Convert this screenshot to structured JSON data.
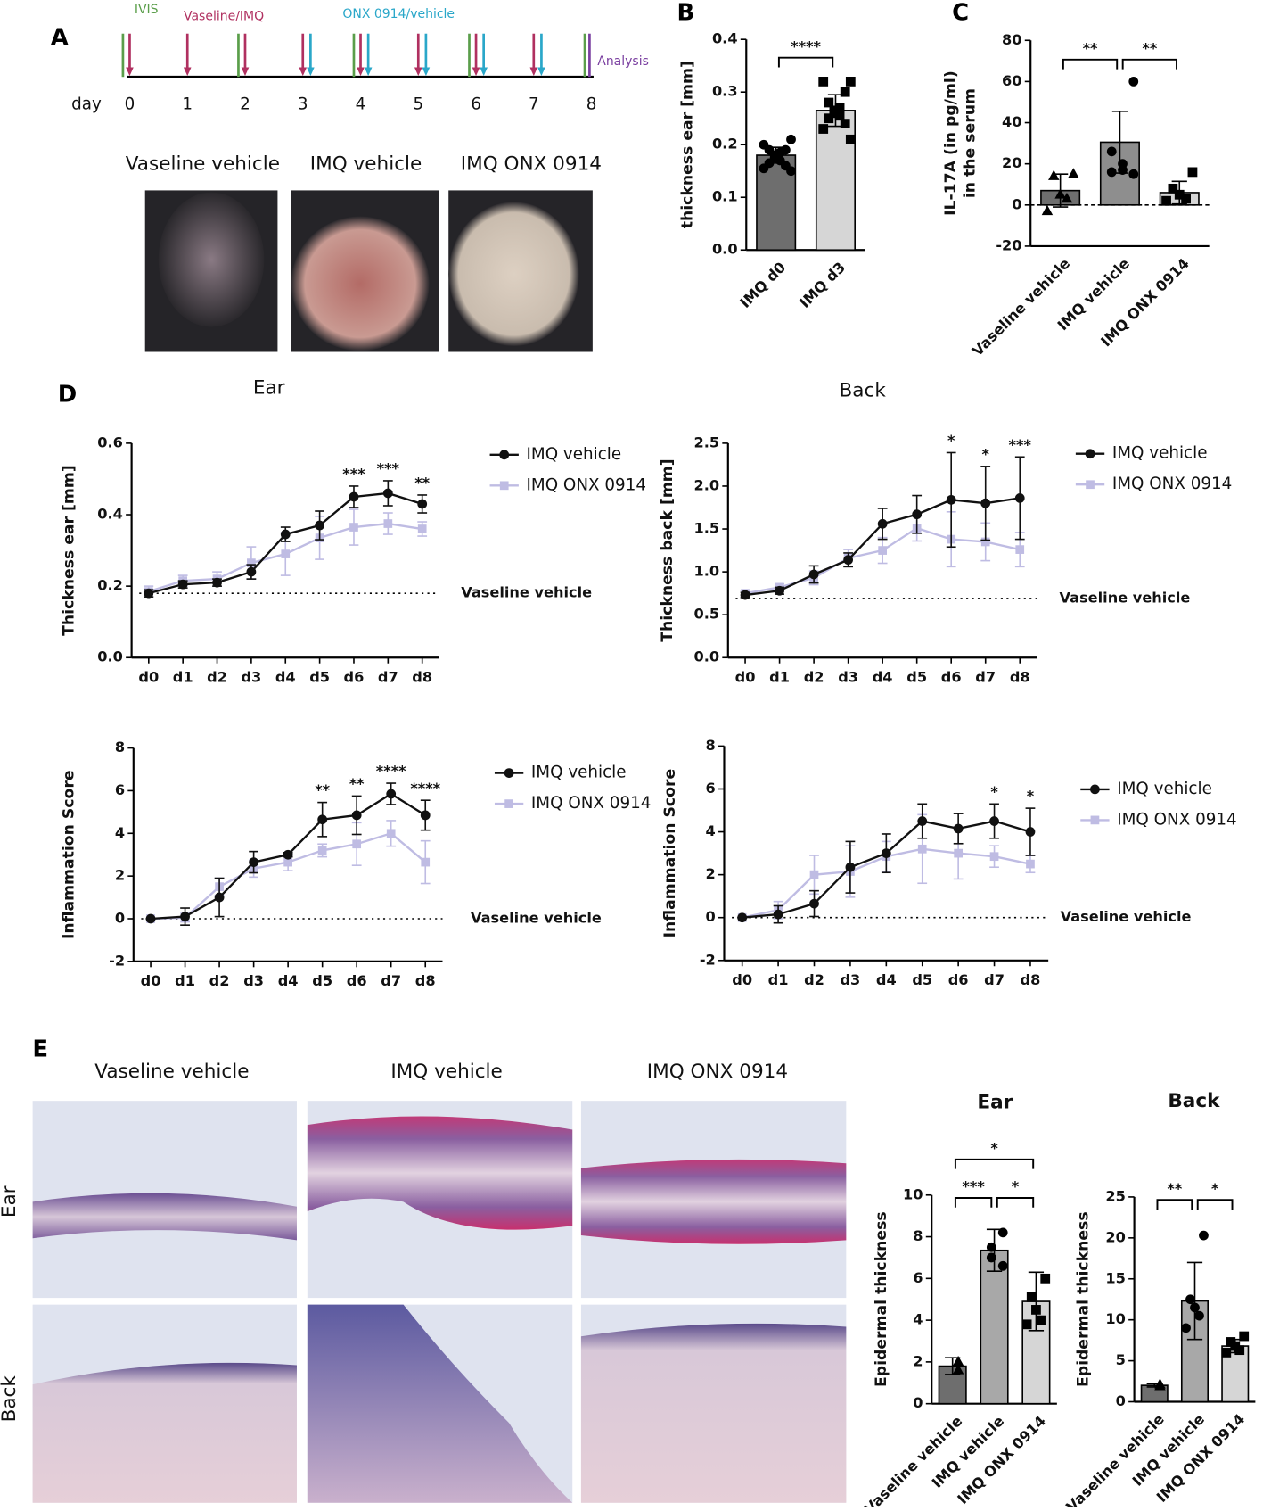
{
  "panel_labels": [
    "A",
    "B",
    "C",
    "D",
    "E"
  ],
  "timeline": {
    "events": [
      "IVIS",
      "Vaseline/IMQ",
      "ONX 0914/vehicle",
      "Analysis"
    ],
    "day_label": "day",
    "days": [
      0,
      1,
      2,
      3,
      4,
      5,
      6,
      7,
      8
    ],
    "photo_labels": [
      "Vaseline vehicle",
      "IMQ vehicle",
      "IMQ ONX 0914"
    ]
  },
  "histology": {
    "column_labels": [
      "Vaseline vehicle",
      "IMQ vehicle",
      "IMQ ONX 0914"
    ],
    "row_labels": [
      "Ear",
      "Back"
    ]
  },
  "chart_data": [
    {
      "type": "bar",
      "ylabel": "thickness ear [mm]",
      "categories": [
        "IMQ d0",
        "IMQ d3"
      ],
      "values": [
        0.18,
        0.265
      ],
      "errors": [
        0.015,
        0.03
      ],
      "points": [
        [
          0.21,
          0.2,
          0.19,
          0.19,
          0.185,
          0.18,
          0.175,
          0.17,
          0.165,
          0.16,
          0.155,
          0.15
        ],
        [
          0.32,
          0.32,
          0.3,
          0.28,
          0.27,
          0.265,
          0.26,
          0.255,
          0.25,
          0.24,
          0.23,
          0.21
        ]
      ],
      "markers": [
        "circle",
        "square"
      ],
      "colors": [
        "#6e6e6e",
        "#d6d6d6"
      ],
      "ylim": [
        0,
        0.4
      ],
      "yticks": [
        {
          "value": 0,
          "label": "0.0"
        },
        0.1,
        0.2,
        0.3,
        0.4
      ],
      "significance": [
        {
          "from": "IMQ d0",
          "to": "IMQ d3",
          "label": "****"
        }
      ]
    },
    {
      "type": "bar",
      "ylabel": [
        "IL-17A (in pg/ml)",
        "in the serum"
      ],
      "categories": [
        "Vaseline vehicle",
        "IMQ vehicle",
        "IMQ ONX 0914"
      ],
      "values": [
        7,
        30.5,
        6
      ],
      "errors": [
        8,
        15,
        5.5
      ],
      "points": [
        [
          15,
          14,
          5,
          3,
          -3
        ],
        [
          60,
          26,
          20,
          17,
          16,
          15
        ],
        [
          16,
          8,
          5,
          3,
          2
        ]
      ],
      "markers": [
        "triangle",
        "circle",
        "square"
      ],
      "colors": [
        "#6e6e6e",
        "#8e8e8e",
        "#d6d6d6"
      ],
      "ylim": [
        -20,
        80
      ],
      "yticks": [
        -20,
        0,
        20,
        40,
        60,
        80
      ],
      "zero_line": true,
      "significance": [
        {
          "from": "Vaseline vehicle",
          "to": "IMQ vehicle",
          "label": "**"
        },
        {
          "from": "IMQ vehicle",
          "to": "IMQ ONX 0914",
          "label": "**"
        }
      ]
    },
    {
      "type": "line",
      "title": "Ear",
      "ylabel": "Thickness ear [mm]",
      "categories": [
        "d0",
        "d1",
        "d2",
        "d3",
        "d4",
        "d5",
        "d6",
        "d7",
        "d8"
      ],
      "series": [
        {
          "name": "IMQ vehicle",
          "color": "#111111",
          "marker": "circle",
          "values": [
            0.18,
            0.205,
            0.21,
            0.24,
            0.345,
            0.37,
            0.45,
            0.46,
            0.43
          ],
          "errors": [
            0.01,
            0.01,
            0.01,
            0.02,
            0.02,
            0.04,
            0.03,
            0.035,
            0.025
          ]
        },
        {
          "name": "IMQ ONX 0914",
          "color": "#bfbce3",
          "marker": "square",
          "values": [
            0.185,
            0.215,
            0.22,
            0.265,
            0.29,
            0.335,
            0.365,
            0.375,
            0.36
          ],
          "errors": [
            0.015,
            0.015,
            0.02,
            0.045,
            0.06,
            0.06,
            0.05,
            0.03,
            0.02
          ]
        }
      ],
      "significance": [
        null,
        null,
        null,
        null,
        null,
        null,
        "***",
        "***",
        "**"
      ],
      "reference": {
        "label": "Vaseline vehicle",
        "value": 0.18
      },
      "ylim": [
        0,
        0.6
      ],
      "yticks": [
        {
          "value": 0,
          "label": "0.0"
        },
        0.2,
        0.4,
        0.6
      ]
    },
    {
      "type": "line",
      "title": "Back",
      "ylabel": "Thickness back [mm]",
      "categories": [
        "d0",
        "d1",
        "d2",
        "d3",
        "d4",
        "d5",
        "d6",
        "d7",
        "d8"
      ],
      "series": [
        {
          "name": "IMQ vehicle",
          "color": "#111111",
          "marker": "circle",
          "values": [
            0.73,
            0.78,
            0.97,
            1.14,
            1.56,
            1.67,
            1.84,
            1.8,
            1.86
          ],
          "errors": [
            0.03,
            0.04,
            0.1,
            0.08,
            0.18,
            0.22,
            0.55,
            0.43,
            0.48
          ]
        },
        {
          "name": "IMQ ONX 0914",
          "color": "#bfbce3",
          "marker": "square",
          "values": [
            0.75,
            0.82,
            0.93,
            1.16,
            1.25,
            1.51,
            1.38,
            1.35,
            1.26
          ],
          "errors": [
            0.03,
            0.04,
            0.08,
            0.1,
            0.15,
            0.15,
            0.32,
            0.22,
            0.2
          ]
        }
      ],
      "significance": [
        null,
        null,
        null,
        null,
        null,
        null,
        "*",
        "*",
        "***"
      ],
      "reference": {
        "label": "Vaseline vehicle",
        "value": 0.69
      },
      "ylim": [
        0,
        2.5
      ],
      "yticks": [
        {
          "value": 0,
          "label": "0.0"
        },
        0.5,
        {
          "value": 1,
          "label": "1.0"
        },
        1.5,
        {
          "value": 2,
          "label": "2.0"
        },
        2.5
      ]
    },
    {
      "type": "line",
      "ylabel": "Inflammation Score",
      "categories": [
        "d0",
        "d1",
        "d2",
        "d3",
        "d4",
        "d5",
        "d6",
        "d7",
        "d8"
      ],
      "series": [
        {
          "name": "IMQ vehicle",
          "color": "#111111",
          "marker": "circle",
          "values": [
            0,
            0.1,
            1.0,
            2.65,
            3.0,
            4.65,
            4.85,
            5.85,
            4.85
          ],
          "errors": [
            0,
            0.4,
            0.9,
            0.5,
            0.1,
            0.8,
            0.9,
            0.5,
            0.7
          ]
        },
        {
          "name": "IMQ ONX 0914",
          "color": "#bfbce3",
          "marker": "square",
          "values": [
            0,
            0.05,
            1.5,
            2.35,
            2.65,
            3.2,
            3.5,
            4.0,
            2.65
          ],
          "errors": [
            0,
            0.2,
            0.4,
            0.4,
            0.4,
            0.3,
            1.0,
            0.6,
            1.0
          ]
        }
      ],
      "significance": [
        null,
        null,
        null,
        null,
        null,
        "**",
        "**",
        "****",
        "****"
      ],
      "reference": {
        "label": "Vaseline vehicle",
        "value": 0
      },
      "ylim": [
        -2,
        8
      ],
      "yticks": [
        -2,
        0,
        2,
        4,
        6,
        8
      ]
    },
    {
      "type": "line",
      "ylabel": "Inflammation Score",
      "categories": [
        "d0",
        "d1",
        "d2",
        "d3",
        "d4",
        "d5",
        "d6",
        "d7",
        "d8"
      ],
      "series": [
        {
          "name": "IMQ vehicle",
          "color": "#111111",
          "marker": "circle",
          "values": [
            0,
            0.15,
            0.65,
            2.35,
            3.0,
            4.5,
            4.15,
            4.5,
            4.0
          ],
          "errors": [
            0,
            0.4,
            0.6,
            1.2,
            0.9,
            0.8,
            0.7,
            0.8,
            1.1
          ]
        },
        {
          "name": "IMQ ONX 0914",
          "color": "#bfbce3",
          "marker": "square",
          "values": [
            0,
            0.35,
            2.0,
            2.15,
            2.85,
            3.2,
            3.0,
            2.85,
            2.5
          ],
          "errors": [
            0,
            0.4,
            0.9,
            1.2,
            0.7,
            1.6,
            1.2,
            0.5,
            0.4
          ]
        }
      ],
      "significance": [
        null,
        null,
        null,
        null,
        null,
        null,
        null,
        "*",
        "*"
      ],
      "reference": {
        "label": "Vaseline vehicle",
        "value": 0
      },
      "ylim": [
        -2,
        8
      ],
      "yticks": [
        -2,
        0,
        2,
        4,
        6,
        8
      ]
    },
    {
      "type": "bar",
      "title": "Ear",
      "ylabel": "Epidermal thickness",
      "categories": [
        "Vaseline vehicle",
        "IMQ vehicle",
        "IMQ ONX 0914"
      ],
      "values": [
        1.8,
        7.35,
        4.9
      ],
      "errors": [
        0.4,
        1.0,
        1.4
      ],
      "points": [
        [
          2.0,
          1.6
        ],
        [
          8.2,
          7.5,
          7.0,
          6.6
        ],
        [
          6.0,
          5.1,
          4.5,
          4.0,
          3.8
        ]
      ],
      "markers": [
        "triangle",
        "circle",
        "square"
      ],
      "colors": [
        "#6e6e6e",
        "#a8a8a8",
        "#d6d6d6"
      ],
      "ylim": [
        0,
        10
      ],
      "yticks": [
        0,
        2,
        4,
        6,
        8,
        10
      ],
      "significance": [
        {
          "from": "Vaseline vehicle",
          "to": "IMQ ONX 0914",
          "label": "*"
        },
        {
          "from": "Vaseline vehicle",
          "to": "IMQ vehicle",
          "label": "***"
        },
        {
          "from": "IMQ vehicle",
          "to": "IMQ ONX 0914",
          "label": "*"
        }
      ]
    },
    {
      "type": "bar",
      "title": "Back",
      "ylabel": "Epidermal thickness",
      "categories": [
        "Vaseline vehicle",
        "IMQ vehicle",
        "IMQ ONX 0914"
      ],
      "values": [
        2.0,
        12.3,
        6.8
      ],
      "errors": [
        0.2,
        4.7,
        0.8
      ],
      "points": [
        [
          2.1,
          1.9
        ],
        [
          20.3,
          12.5,
          11.5,
          10.5,
          9.0
        ],
        [
          8.0,
          7.3,
          6.8,
          6.3,
          6.0
        ]
      ],
      "markers": [
        "triangle",
        "circle",
        "square"
      ],
      "colors": [
        "#6e6e6e",
        "#a8a8a8",
        "#d6d6d6"
      ],
      "ylim": [
        0,
        25
      ],
      "yticks": [
        0,
        5,
        10,
        15,
        20,
        25
      ],
      "significance": [
        {
          "from": "Vaseline vehicle",
          "to": "IMQ vehicle",
          "label": "**"
        },
        {
          "from": "IMQ vehicle",
          "to": "IMQ ONX 0914",
          "label": "*"
        }
      ]
    }
  ]
}
